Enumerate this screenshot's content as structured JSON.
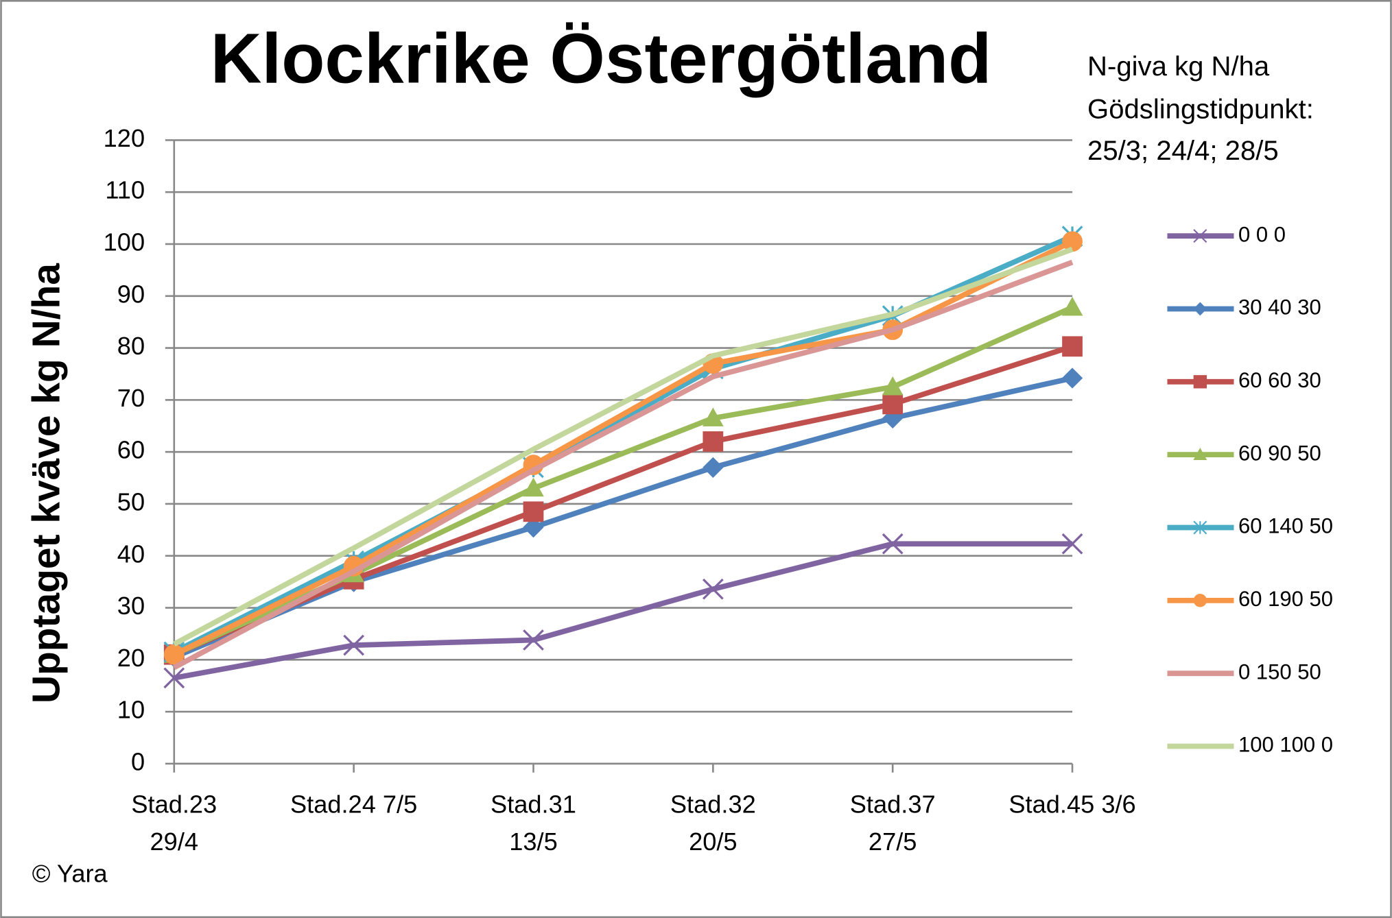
{
  "chart_data": {
    "type": "line",
    "title": "Klockrike Östergötland",
    "ylabel": "Upptaget kväve kg N/ha",
    "annotation": [
      "N-giva kg N/ha",
      "Gödslingstidpunkt:",
      "25/3; 24/4; 28/5"
    ],
    "source": "© Yara",
    "categories": [
      [
        "Stad.23",
        "29/4"
      ],
      [
        "Stad.24 7/5"
      ],
      [
        "Stad.31",
        "13/5"
      ],
      [
        "Stad.32",
        "20/5"
      ],
      [
        "Stad.37",
        "27/5"
      ],
      [
        "Stad.45 3/6"
      ]
    ],
    "ylim": [
      0,
      120
    ],
    "yticks": [
      0,
      10,
      20,
      30,
      40,
      50,
      60,
      70,
      80,
      90,
      100,
      110,
      120
    ],
    "grid": true,
    "legend": "right",
    "series": [
      {
        "name": "0 0 0",
        "color": "#8064a2",
        "marker": "x",
        "values": [
          16.5,
          22.8,
          23.8,
          33.6,
          42.3,
          42.3
        ]
      },
      {
        "name": "30 40 30",
        "color": "#4f81bd",
        "marker": "diamond",
        "values": [
          20.5,
          35,
          45.5,
          57,
          66.5,
          74.2
        ]
      },
      {
        "name": "60 60 30",
        "color": "#c0504d",
        "marker": "square",
        "values": [
          21,
          35.5,
          48.5,
          62,
          69.2,
          80.3
        ]
      },
      {
        "name": "60 90 50",
        "color": "#9bbb59",
        "marker": "triangle",
        "values": [
          21,
          36.5,
          53,
          66.5,
          72.5,
          87.8
        ]
      },
      {
        "name": "60 140 50",
        "color": "#4bacc6",
        "marker": "star",
        "values": [
          21.5,
          39,
          57,
          76,
          86.2,
          101.5
        ]
      },
      {
        "name": "60 190 50",
        "color": "#f79646",
        "marker": "circle",
        "values": [
          21,
          38,
          57.5,
          77,
          83.5,
          100.5
        ]
      },
      {
        "name": "0 150 50",
        "color": "#d99694",
        "marker": "none",
        "values": [
          18.5,
          37,
          56.5,
          74.5,
          83.5,
          96.5
        ]
      },
      {
        "name": "100 100 0",
        "color": "#c3d69b",
        "marker": "none",
        "values": [
          23,
          41.5,
          60.5,
          78.5,
          86.5,
          99
        ]
      }
    ]
  }
}
